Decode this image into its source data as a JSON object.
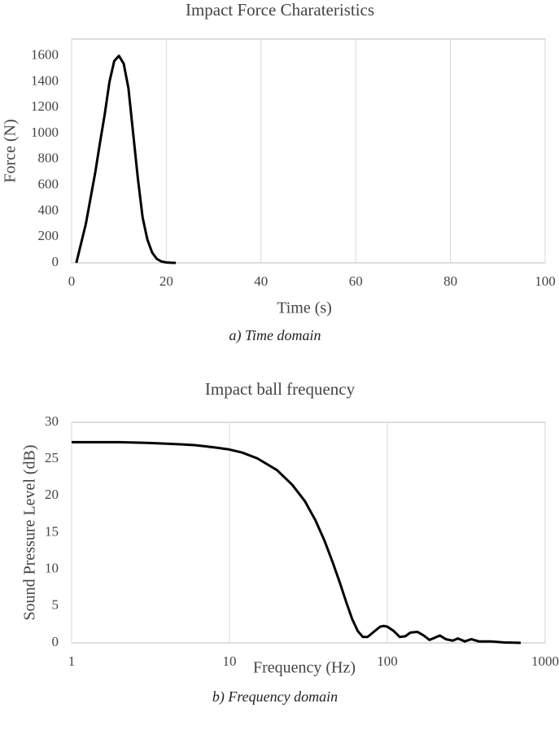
{
  "chart_data": [
    {
      "type": "line",
      "title": "Impact Force Charateristics",
      "x_label": "Time (s)",
      "y_label": "Force (N)",
      "caption": "a)  Time  domain",
      "x": [
        1,
        2,
        3,
        4,
        5,
        6,
        7,
        8,
        9,
        10,
        11,
        12,
        13,
        14,
        15,
        16,
        17,
        18,
        19,
        20,
        21,
        22
      ],
      "series": [
        {
          "name": "Force",
          "color": "#000000",
          "values": [
            0,
            150,
            300,
            500,
            700,
            930,
            1150,
            1400,
            1560,
            1600,
            1540,
            1350,
            1000,
            650,
            350,
            180,
            80,
            30,
            10,
            3,
            1,
            0
          ]
        }
      ],
      "xlim": [
        0,
        100
      ],
      "xticks": [
        0,
        20,
        40,
        60,
        80,
        100
      ],
      "ylim": [
        0,
        1730
      ],
      "yticks": [
        0,
        200,
        400,
        600,
        800,
        1000,
        1200,
        1400,
        1600
      ],
      "grid": "x",
      "log_x": false
    },
    {
      "type": "line",
      "title": "Impact ball frequency",
      "x_label": "Frequency (Hz)",
      "y_label": "Sound Pressure Level (dB)",
      "caption": "b)  Frequency  domain",
      "x": [
        1,
        2,
        3,
        4,
        5,
        6,
        8,
        10,
        12,
        15,
        20,
        25,
        30,
        35,
        40,
        45,
        50,
        55,
        60,
        65,
        70,
        75,
        80,
        90,
        95,
        100,
        110,
        120,
        130,
        140,
        155,
        170,
        185,
        200,
        215,
        235,
        260,
        280,
        310,
        340,
        380,
        450,
        550,
        700
      ],
      "series": [
        {
          "name": "SPL",
          "color": "#000000",
          "values": [
            27.3,
            27.3,
            27.2,
            27.1,
            27.0,
            26.9,
            26.6,
            26.3,
            25.9,
            25.1,
            23.5,
            21.5,
            19.3,
            16.7,
            13.9,
            11,
            8.2,
            5.5,
            3.2,
            1.6,
            0.8,
            0.8,
            1.3,
            2.2,
            2.3,
            2.2,
            1.6,
            0.8,
            0.9,
            1.4,
            1.5,
            1.0,
            0.4,
            0.7,
            1.0,
            0.5,
            0.3,
            0.6,
            0.2,
            0.5,
            0.2,
            0.2,
            0.05,
            0
          ]
        }
      ],
      "xlim": [
        1,
        1000
      ],
      "xticks": [
        1,
        10,
        100,
        1000
      ],
      "ylim": [
        0,
        30
      ],
      "yticks": [
        0,
        5,
        10,
        15,
        20,
        25,
        30
      ],
      "grid": "x",
      "log_x": true
    }
  ]
}
